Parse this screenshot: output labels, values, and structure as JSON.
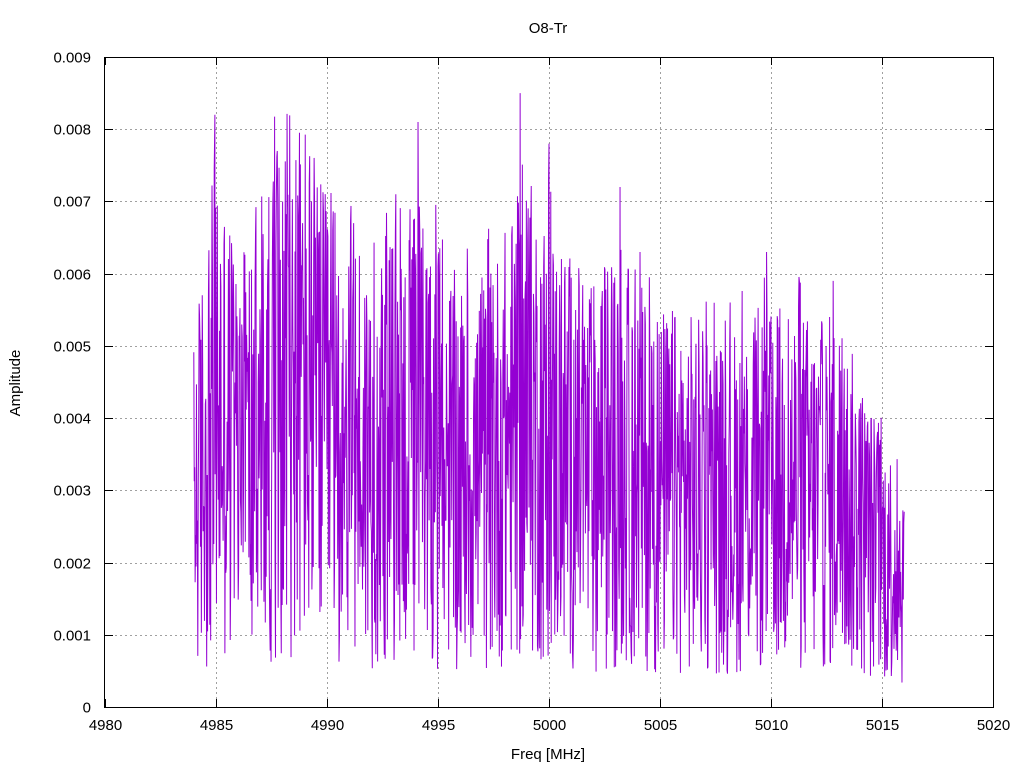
{
  "chart_data": {
    "type": "line",
    "title": "O8-Tr",
    "xlabel": "Freq [MHz]",
    "ylabel": "Amplitude",
    "xlim": [
      4980,
      5020
    ],
    "ylim": [
      0,
      0.009
    ],
    "x_ticks": [
      "4980",
      "4985",
      "4990",
      "4995",
      "5000",
      "5005",
      "5010",
      "5015",
      "5020"
    ],
    "y_ticks": [
      "0",
      "0.001",
      "0.002",
      "0.003",
      "0.004",
      "0.005",
      "0.006",
      "0.007",
      "0.008",
      "0.009"
    ],
    "grid": true,
    "color": "#9400d3",
    "series": [
      {
        "x_start": 4984.0,
        "x_end": 5016.0,
        "envelope_x": [
          4984.0,
          4985.0,
          4986.0,
          4987.0,
          4988.0,
          4989.0,
          4990.0,
          4991.0,
          4992.0,
          4993.0,
          4994.0,
          4995.0,
          4996.0,
          4997.0,
          4998.0,
          4999.0,
          5000.0,
          5001.0,
          5002.0,
          5003.0,
          5004.0,
          5005.0,
          5006.0,
          5007.0,
          5008.0,
          5009.0,
          5010.0,
          5011.0,
          5012.0,
          5013.0,
          5014.0,
          5015.0,
          5016.0
        ],
        "envelope_y": [
          0.0028,
          0.0042,
          0.0035,
          0.0036,
          0.0044,
          0.0045,
          0.0038,
          0.0038,
          0.0034,
          0.0036,
          0.0038,
          0.0035,
          0.0032,
          0.0032,
          0.0036,
          0.004,
          0.0037,
          0.0034,
          0.0032,
          0.0035,
          0.0032,
          0.003,
          0.003,
          0.0029,
          0.0028,
          0.003,
          0.003,
          0.0031,
          0.0029,
          0.003,
          0.0025,
          0.0021,
          0.0018
        ],
        "peaks_x": [
          4984.95,
          4988.0,
          4988.9,
          4989.3,
          4991.2,
          4993.1,
          4994.1,
          4998.7,
          5000.0,
          5003.2,
          5004.1,
          5009.8,
          5012.8
        ],
        "peaks_y": [
          0.0082,
          0.007,
          0.0067,
          0.007,
          0.0067,
          0.0071,
          0.0081,
          0.0085,
          0.0078,
          0.0072,
          0.0063,
          0.0063,
          0.0059
        ]
      }
    ]
  }
}
